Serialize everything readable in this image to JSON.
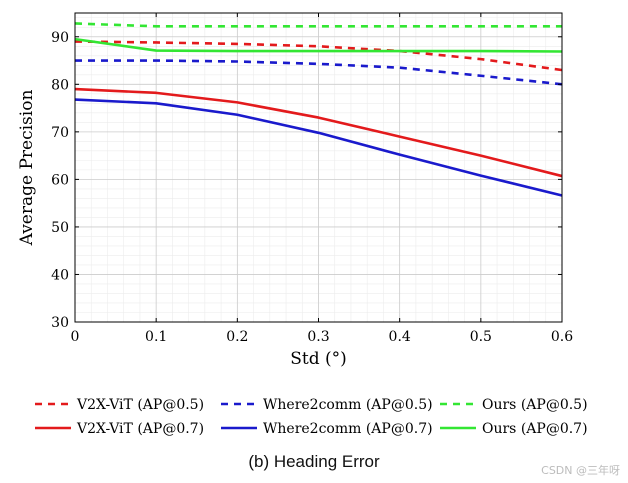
{
  "chart_data": {
    "type": "line",
    "title": "",
    "xlabel": "Std (°)",
    "ylabel": "Average Precision",
    "xlim": [
      0,
      0.6
    ],
    "ylim": [
      30,
      95
    ],
    "xticks": [
      0,
      0.1,
      0.2,
      0.3,
      0.4,
      0.5,
      0.6
    ],
    "xtick_labels": [
      "0",
      "0.1",
      "0.2",
      "0.3",
      "0.4",
      "0.5",
      "0.6"
    ],
    "yticks": [
      30,
      40,
      50,
      60,
      70,
      80,
      90
    ],
    "ytick_labels": [
      "30",
      "40",
      "50",
      "60",
      "70",
      "80",
      "90"
    ],
    "grid": true,
    "x": [
      0,
      0.1,
      0.2,
      0.3,
      0.4,
      0.5,
      0.6
    ],
    "series": [
      {
        "name": "V2X-ViT (AP@0.5)",
        "color": "#e31a1c",
        "dash": true,
        "values": [
          89.0,
          88.8,
          88.5,
          88.0,
          87.0,
          85.3,
          83.0
        ]
      },
      {
        "name": "Where2comm (AP@0.5)",
        "color": "#1a1acc",
        "dash": true,
        "values": [
          85.0,
          85.0,
          84.8,
          84.3,
          83.5,
          81.8,
          80.0
        ]
      },
      {
        "name": "Ours (AP@0.5)",
        "color": "#33e633",
        "dash": true,
        "values": [
          92.8,
          92.2,
          92.2,
          92.2,
          92.2,
          92.2,
          92.2
        ]
      },
      {
        "name": "V2X-ViT (AP@0.7)",
        "color": "#e31a1c",
        "dash": false,
        "values": [
          79.0,
          78.2,
          76.2,
          73.0,
          69.0,
          65.0,
          60.7
        ]
      },
      {
        "name": "Where2comm (AP@0.7)",
        "color": "#1a1acc",
        "dash": false,
        "values": [
          76.8,
          76.0,
          73.6,
          69.8,
          65.2,
          60.8,
          56.6
        ]
      },
      {
        "name": "Ours (AP@0.7)",
        "color": "#33e633",
        "dash": false,
        "values": [
          89.5,
          87.1,
          87.0,
          87.0,
          87.0,
          87.0,
          86.9
        ]
      }
    ],
    "legend_position": "bottom"
  },
  "caption": "(b) Heading Error",
  "watermark": "CSDN @三年呀"
}
